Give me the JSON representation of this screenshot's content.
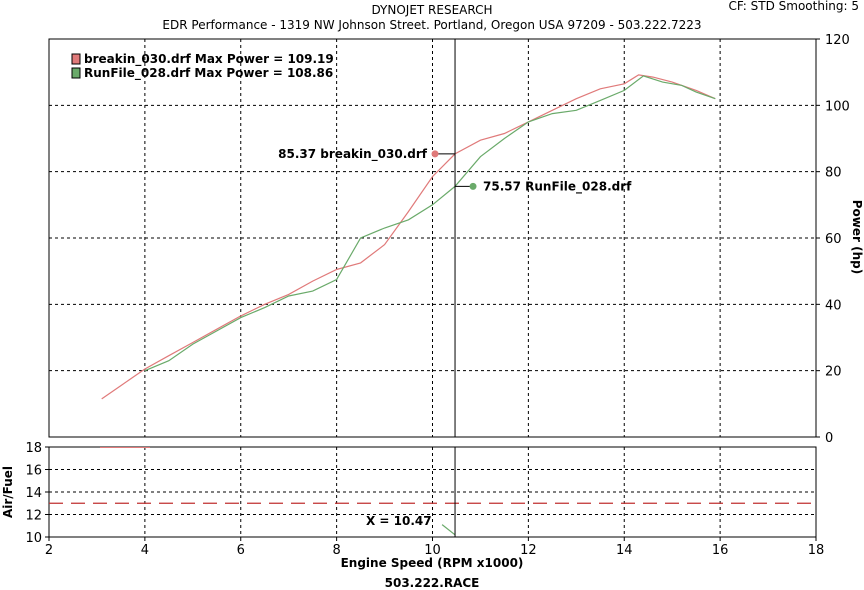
{
  "header": {
    "title": "DYNOJET RESEARCH",
    "subtitle": "EDR Performance - 1319 NW Johnson Street. Portland, Oregon USA 97209 - 503.222.7223",
    "settings": "CF: STD  Smoothing: 5"
  },
  "footer": {
    "text": "503.222.RACE"
  },
  "colors": {
    "run1": "#e07a7a",
    "run2": "#6aaa6a",
    "grid": "#000000",
    "afr_target": "#c03030",
    "cursor": "#000000"
  },
  "chart_data": [
    {
      "type": "line",
      "title": "",
      "xlabel": "Engine Speed (RPM x1000)",
      "ylabel": "Power (hp)",
      "xlim": [
        2,
        18
      ],
      "ylim": [
        0,
        120
      ],
      "x_ticks": [
        "2",
        "4",
        "6",
        "8",
        "10",
        "12",
        "14",
        "16",
        "18"
      ],
      "y_ticks": [
        "0",
        "20",
        "40",
        "60",
        "80",
        "100",
        "120"
      ],
      "grid": true,
      "legend_position": "top-left",
      "legend": [
        "breakin_030.drf Max Power = 109.19",
        "RunFile_028.drf Max Power = 108.86"
      ],
      "cursor_x": 10.47,
      "cursor_label": "X = 10.47",
      "annotations": [
        {
          "label": "85.37 breakin_030.drf",
          "x": 10.47,
          "y": 85.37,
          "series": 0
        },
        {
          "label": "75.57 RunFile_028.drf",
          "x": 10.47,
          "y": 75.57,
          "series": 1
        }
      ],
      "series": [
        {
          "name": "breakin_030.drf",
          "x": [
            3.1,
            3.5,
            4.0,
            4.5,
            5.0,
            5.5,
            6.0,
            6.5,
            7.0,
            7.5,
            8.0,
            8.5,
            9.0,
            9.5,
            10.0,
            10.47,
            11.0,
            11.5,
            12.0,
            12.5,
            13.0,
            13.5,
            14.0,
            14.3,
            14.6,
            15.0,
            15.5,
            15.9
          ],
          "y": [
            11.5,
            15.5,
            20.5,
            24.5,
            28.5,
            32.5,
            36.5,
            40.0,
            43.0,
            47.0,
            50.5,
            52.5,
            58.0,
            68.0,
            78.5,
            85.37,
            89.5,
            91.5,
            95.0,
            98.5,
            102.0,
            105.0,
            106.5,
            109.19,
            108.5,
            107.0,
            104.5,
            102.0
          ]
        },
        {
          "name": "RunFile_028.drf",
          "x": [
            4.0,
            4.5,
            5.0,
            5.5,
            6.0,
            6.5,
            7.0,
            7.5,
            8.0,
            8.5,
            9.0,
            9.5,
            10.0,
            10.47,
            11.0,
            11.5,
            12.0,
            12.5,
            13.0,
            13.5,
            14.0,
            14.4,
            14.8,
            15.2,
            15.5,
            15.9
          ],
          "y": [
            20.0,
            23.0,
            28.0,
            32.0,
            36.0,
            39.0,
            42.5,
            44.0,
            47.5,
            60.0,
            63.0,
            65.5,
            70.0,
            75.57,
            84.5,
            90.0,
            95.0,
            97.5,
            98.5,
            101.5,
            104.5,
            108.86,
            107.0,
            106.0,
            104.0,
            102.0
          ]
        }
      ]
    },
    {
      "type": "line",
      "title": "",
      "xlabel": "Engine Speed (RPM x1000)",
      "ylabel": "Air/Fuel",
      "xlim": [
        2,
        18
      ],
      "ylim": [
        10,
        18
      ],
      "y_ticks": [
        "10",
        "12",
        "14",
        "16",
        "18"
      ],
      "grid": true,
      "reference_line": 13,
      "series": [
        {
          "name": "",
          "x": [
            10.2,
            10.47
          ],
          "y": [
            11.1,
            10.2
          ]
        }
      ]
    }
  ]
}
